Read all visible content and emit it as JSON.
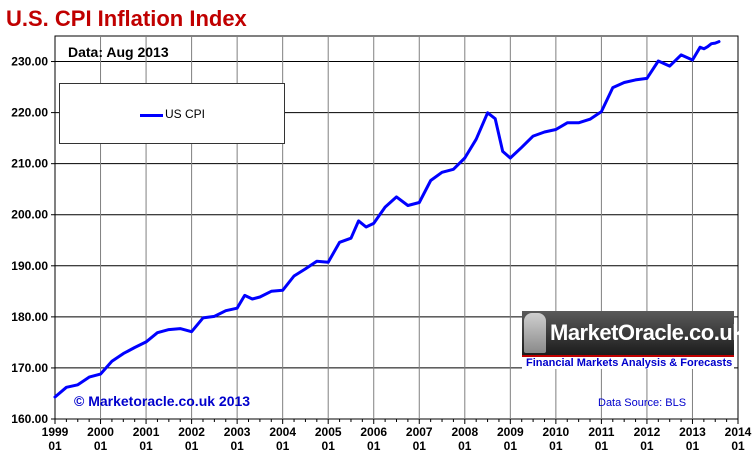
{
  "header": {
    "title": "U.S. CPI Inflation Index",
    "data_label": "Data: Aug 2013"
  },
  "legend": {
    "entries": [
      "US CPI"
    ]
  },
  "footer": {
    "copyright": "© Marketoracle.co.uk 2013",
    "source": "Data Source: BLS"
  },
  "logo": {
    "brand": "MarketOracle.co.uk",
    "tagline": "Financial Markets Analysis & Forecasts"
  },
  "colors": {
    "line": "#0000ff",
    "title": "#c00000",
    "annotation": "#0000cc",
    "background": "#ffffff",
    "grid": "#808080"
  },
  "chart_data": {
    "type": "line",
    "title": "U.S. CPI Inflation Index",
    "xlabel": "",
    "ylabel": "",
    "ylim": [
      160,
      235
    ],
    "xlim": [
      "1999-01",
      "2014-01"
    ],
    "grid": true,
    "legend_position": "top-left",
    "y_ticks": [
      160,
      170,
      180,
      190,
      200,
      210,
      220,
      230
    ],
    "y_tick_labels": [
      "160.00",
      "170.00",
      "180.00",
      "190.00",
      "200.00",
      "210.00",
      "220.00",
      "230.00"
    ],
    "x_tick_labels": [
      [
        "1999",
        "01"
      ],
      [
        "2000",
        "01"
      ],
      [
        "2001",
        "01"
      ],
      [
        "2002",
        "01"
      ],
      [
        "2003",
        "01"
      ],
      [
        "2004",
        "01"
      ],
      [
        "2005",
        "01"
      ],
      [
        "2006",
        "01"
      ],
      [
        "2007",
        "01"
      ],
      [
        "2008",
        "01"
      ],
      [
        "2009",
        "01"
      ],
      [
        "2010",
        "01"
      ],
      [
        "2011",
        "01"
      ],
      [
        "2012",
        "01"
      ],
      [
        "2013",
        "01"
      ],
      [
        "2014",
        "01"
      ]
    ],
    "series": [
      {
        "name": "US CPI",
        "points": [
          [
            "1999-01",
            164.3
          ],
          [
            "1999-04",
            166.2
          ],
          [
            "1999-07",
            166.7
          ],
          [
            "1999-10",
            168.2
          ],
          [
            "2000-01",
            168.8
          ],
          [
            "2000-04",
            171.3
          ],
          [
            "2000-07",
            172.8
          ],
          [
            "2000-10",
            174.0
          ],
          [
            "2001-01",
            175.1
          ],
          [
            "2001-04",
            176.9
          ],
          [
            "2001-07",
            177.5
          ],
          [
            "2001-10",
            177.7
          ],
          [
            "2002-01",
            177.1
          ],
          [
            "2002-04",
            179.8
          ],
          [
            "2002-07",
            180.1
          ],
          [
            "2002-10",
            181.2
          ],
          [
            "2003-01",
            181.7
          ],
          [
            "2003-03",
            184.2
          ],
          [
            "2003-05",
            183.5
          ],
          [
            "2003-07",
            183.9
          ],
          [
            "2003-10",
            185.0
          ],
          [
            "2004-01",
            185.2
          ],
          [
            "2004-04",
            188.0
          ],
          [
            "2004-07",
            189.4
          ],
          [
            "2004-10",
            190.9
          ],
          [
            "2005-01",
            190.7
          ],
          [
            "2005-04",
            194.6
          ],
          [
            "2005-07",
            195.4
          ],
          [
            "2005-09",
            198.8
          ],
          [
            "2005-11",
            197.6
          ],
          [
            "2006-01",
            198.3
          ],
          [
            "2006-04",
            201.5
          ],
          [
            "2006-07",
            203.5
          ],
          [
            "2006-10",
            201.8
          ],
          [
            "2007-01",
            202.4
          ],
          [
            "2007-04",
            206.7
          ],
          [
            "2007-07",
            208.3
          ],
          [
            "2007-10",
            208.9
          ],
          [
            "2008-01",
            211.1
          ],
          [
            "2008-04",
            214.8
          ],
          [
            "2008-07",
            219.96
          ],
          [
            "2008-09",
            218.8
          ],
          [
            "2008-11",
            212.4
          ],
          [
            "2009-01",
            211.1
          ],
          [
            "2009-04",
            213.2
          ],
          [
            "2009-07",
            215.4
          ],
          [
            "2009-10",
            216.2
          ],
          [
            "2010-01",
            216.7
          ],
          [
            "2010-04",
            218.0
          ],
          [
            "2010-07",
            218.0
          ],
          [
            "2010-10",
            218.7
          ],
          [
            "2011-01",
            220.2
          ],
          [
            "2011-04",
            224.9
          ],
          [
            "2011-07",
            225.9
          ],
          [
            "2011-10",
            226.4
          ],
          [
            "2012-01",
            226.7
          ],
          [
            "2012-04",
            230.1
          ],
          [
            "2012-07",
            229.1
          ],
          [
            "2012-10",
            231.3
          ],
          [
            "2013-01",
            230.3
          ],
          [
            "2013-03",
            232.8
          ],
          [
            "2013-04",
            232.5
          ],
          [
            "2013-05",
            232.9
          ],
          [
            "2013-06",
            233.5
          ],
          [
            "2013-07",
            233.6
          ],
          [
            "2013-08",
            233.9
          ]
        ]
      }
    ]
  }
}
